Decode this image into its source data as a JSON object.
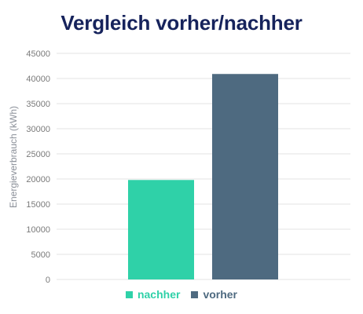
{
  "title": "Vergleich vorher/nachher",
  "colors": {
    "nachher": "#2fd1a8",
    "vorher": "#4e6a80",
    "title": "#16235c",
    "grid": "#e3e3e3"
  },
  "chart_data": {
    "type": "bar",
    "title": "Vergleich vorher/nachher",
    "xlabel": "",
    "ylabel": "Energieverbrauch (kWh)",
    "ylim": [
      0,
      45000
    ],
    "yticks": [
      0,
      5000,
      10000,
      15000,
      20000,
      25000,
      30000,
      35000,
      40000,
      45000
    ],
    "grid": true,
    "legend_position": "bottom",
    "series": [
      {
        "name": "nachher",
        "values": [
          19800
        ],
        "color": "#2fd1a8"
      },
      {
        "name": "vorher",
        "values": [
          40900
        ],
        "color": "#4e6a80"
      }
    ]
  }
}
